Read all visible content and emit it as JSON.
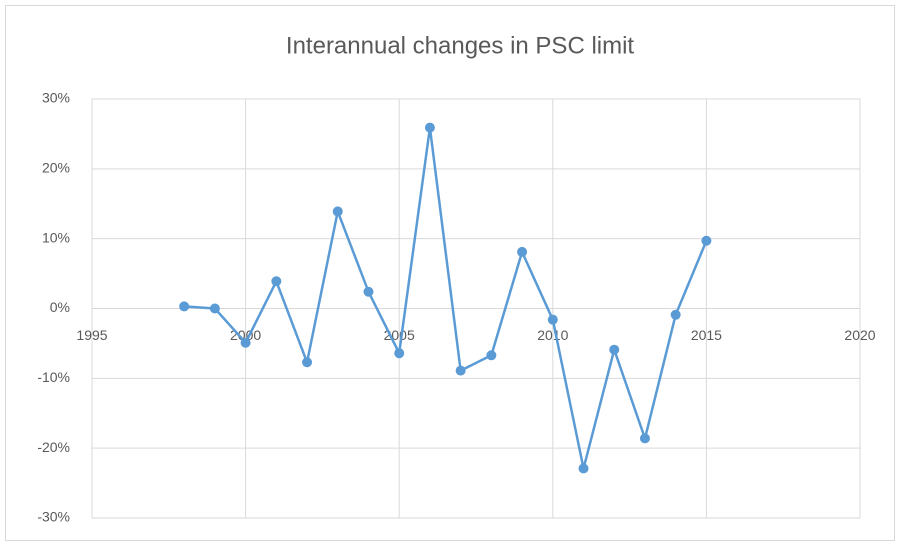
{
  "chart_data": {
    "type": "line",
    "title": "Interannual changes in PSC limit",
    "x": [
      1998,
      1999,
      2000,
      2001,
      2002,
      2003,
      2004,
      2005,
      2006,
      2007,
      2008,
      2009,
      2010,
      2011,
      2012,
      2013,
      2014,
      2015
    ],
    "values": [
      0.3,
      0,
      -4.9,
      3.9,
      -7.7,
      13.9,
      2.4,
      -6.4,
      25.9,
      -8.9,
      -6.7,
      8.1,
      -1.6,
      -22.9,
      -5.9,
      -18.6,
      -0.9,
      9.7
    ],
    "color": "#5b9bd5",
    "xlim": [
      1995,
      2020
    ],
    "xticks": [
      1995,
      2000,
      2005,
      2010,
      2015,
      2020
    ],
    "ylim": [
      -30,
      30
    ],
    "yticks": [
      {
        "value": -30,
        "label": "-30%"
      },
      {
        "value": -20,
        "label": "-20%"
      },
      {
        "value": -10,
        "label": "-10%"
      },
      {
        "value": 0,
        "label": "0%"
      },
      {
        "value": 10,
        "label": "10%"
      },
      {
        "value": 20,
        "label": "20%"
      },
      {
        "value": 30,
        "label": "30%"
      }
    ],
    "grid": true
  }
}
